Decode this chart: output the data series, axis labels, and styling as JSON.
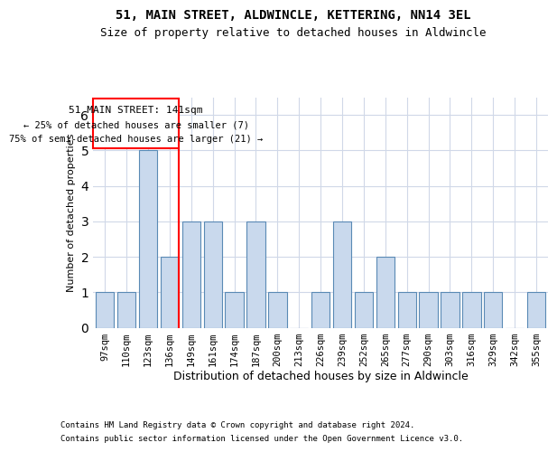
{
  "title1": "51, MAIN STREET, ALDWINCLE, KETTERING, NN14 3EL",
  "title2": "Size of property relative to detached houses in Aldwincle",
  "xlabel": "Distribution of detached houses by size in Aldwincle",
  "ylabel": "Number of detached properties",
  "footer1": "Contains HM Land Registry data © Crown copyright and database right 2024.",
  "footer2": "Contains public sector information licensed under the Open Government Licence v3.0.",
  "categories": [
    "97sqm",
    "110sqm",
    "123sqm",
    "136sqm",
    "149sqm",
    "161sqm",
    "174sqm",
    "187sqm",
    "200sqm",
    "213sqm",
    "226sqm",
    "239sqm",
    "252sqm",
    "265sqm",
    "277sqm",
    "290sqm",
    "303sqm",
    "316sqm",
    "329sqm",
    "342sqm",
    "355sqm"
  ],
  "values": [
    1,
    1,
    5,
    2,
    3,
    3,
    1,
    3,
    1,
    0,
    1,
    3,
    1,
    2,
    1,
    1,
    1,
    1,
    1,
    0,
    1
  ],
  "bar_color": "#c9d9ed",
  "bar_edge_color": "#5a8ab5",
  "red_line_index": 3,
  "annotation_title": "51 MAIN STREET: 141sqm",
  "annotation_line1": "← 25% of detached houses are smaller (7)",
  "annotation_line2": "75% of semi-detached houses are larger (21) →",
  "ylim": [
    0,
    6.5
  ],
  "yticks": [
    0,
    1,
    2,
    3,
    4,
    5,
    6
  ],
  "background_color": "#ffffff",
  "grid_color": "#d0d8e8"
}
